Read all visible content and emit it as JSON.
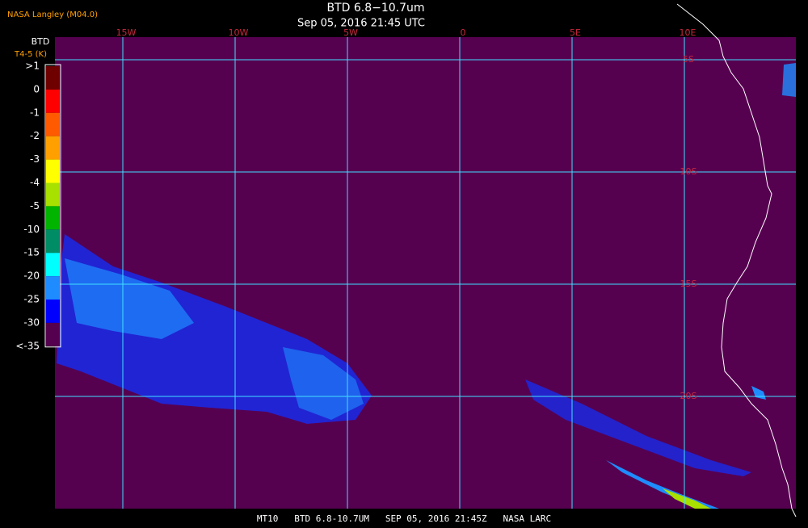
{
  "header": {
    "source": "NASA Langley (M04.0)",
    "title": "BTD 6.8−10.7um",
    "time": "Sep 05, 2016 21:45 UTC"
  },
  "colorbar": {
    "title": "BTD",
    "units": "T4-5 (K)",
    "labels": [
      ">1",
      "0",
      "-1",
      "-2",
      "-3",
      "-4",
      "-5",
      "-10",
      "-15",
      "-20",
      "-25",
      "-30",
      "<-35"
    ],
    "colors": [
      "#6e0000",
      "#ff0000",
      "#ff5a00",
      "#ffa000",
      "#ffff00",
      "#a8e000",
      "#00b400",
      "#008c64",
      "#00ffff",
      "#1e8cff",
      "#0000ff",
      "#560050"
    ]
  },
  "map": {
    "lon_labels": [
      "15W",
      "10W",
      "5W",
      "0",
      "5E",
      "10E"
    ],
    "lat_labels": [
      "5S",
      "10S",
      "15S",
      "20S"
    ],
    "background": "#560050",
    "grid_color": "#40e0ff",
    "label_color": "#c8283c"
  },
  "footer": "MT10   BTD 6.8-10.7UM   SEP 05, 2016 21:45Z   NASA LARC"
}
